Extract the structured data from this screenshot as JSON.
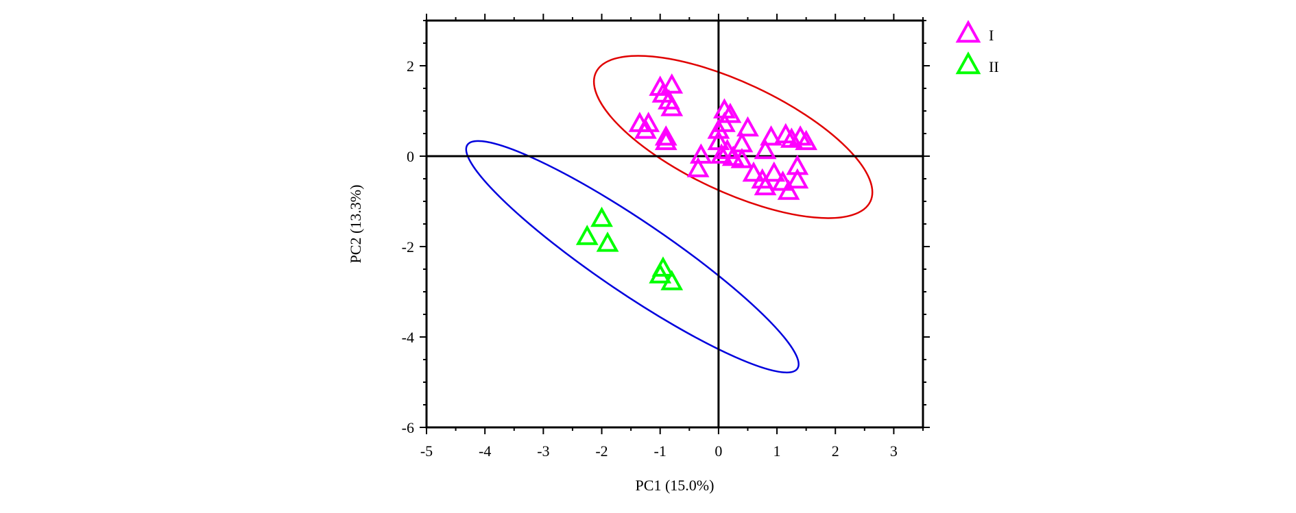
{
  "chart_data": {
    "type": "scatter",
    "xlabel": "PC1 (15.0%)",
    "ylabel": "PC2 (13.3%)",
    "xlim": [
      -5,
      3.5
    ],
    "ylim": [
      -6,
      3
    ],
    "x_ticks": [
      -5,
      -4,
      -3,
      -2,
      -1,
      0,
      1,
      2,
      3
    ],
    "y_ticks": [
      -6,
      -4,
      -2,
      0,
      2
    ],
    "zero_lines": true,
    "grid": false,
    "legend_position": "top-right outside",
    "series": [
      {
        "name": "I",
        "marker": "triangle-open",
        "color": "#ff00ff",
        "points": [
          [
            -1.0,
            1.5
          ],
          [
            -0.8,
            1.55
          ],
          [
            -0.95,
            1.35
          ],
          [
            -0.85,
            1.2
          ],
          [
            -0.8,
            1.05
          ],
          [
            -1.35,
            0.7
          ],
          [
            -1.2,
            0.7
          ],
          [
            -1.25,
            0.55
          ],
          [
            -0.9,
            0.4
          ],
          [
            -0.9,
            0.3
          ],
          [
            -0.3,
            0.0
          ],
          [
            -0.35,
            -0.3
          ],
          [
            0.0,
            0.3
          ],
          [
            0.0,
            0.55
          ],
          [
            0.05,
            0.0
          ],
          [
            0.1,
            0.7
          ],
          [
            0.1,
            1.0
          ],
          [
            0.2,
            0.9
          ],
          [
            0.15,
            0.1
          ],
          [
            0.25,
            -0.05
          ],
          [
            0.4,
            0.25
          ],
          [
            0.5,
            0.6
          ],
          [
            0.4,
            -0.1
          ],
          [
            0.6,
            -0.4
          ],
          [
            0.75,
            -0.55
          ],
          [
            0.8,
            0.1
          ],
          [
            0.8,
            -0.7
          ],
          [
            0.9,
            0.4
          ],
          [
            0.95,
            -0.4
          ],
          [
            1.1,
            -0.6
          ],
          [
            1.15,
            0.45
          ],
          [
            1.25,
            0.35
          ],
          [
            1.2,
            -0.8
          ],
          [
            1.35,
            -0.55
          ],
          [
            1.35,
            -0.25
          ],
          [
            1.4,
            0.4
          ],
          [
            1.5,
            0.3
          ]
        ]
      },
      {
        "name": "II",
        "marker": "triangle-open",
        "color": "#00ff00",
        "points": [
          [
            -2.25,
            -1.8
          ],
          [
            -2.0,
            -1.4
          ],
          [
            -1.9,
            -1.95
          ],
          [
            -0.95,
            -2.5
          ],
          [
            -1.0,
            -2.65
          ],
          [
            -0.8,
            -2.8
          ]
        ]
      }
    ],
    "ellipses": [
      {
        "group": "I",
        "color": "#e00000",
        "center": [
          0.55,
          0.28
        ],
        "points": [
          [
            -2.1,
            1.85
          ],
          [
            2.6,
            -1.0
          ]
        ]
      },
      {
        "group": "II",
        "color": "#0000dd",
        "center": [
          -1.55,
          -2.25
        ],
        "points": [
          [
            -4.3,
            0.25
          ],
          [
            1.35,
            -4.7
          ]
        ]
      }
    ]
  }
}
